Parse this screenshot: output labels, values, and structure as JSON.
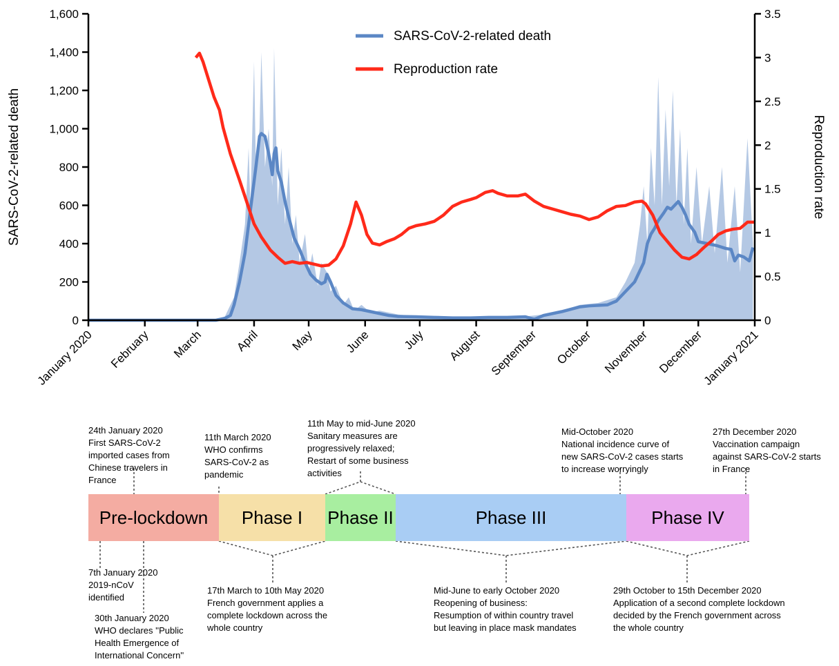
{
  "chart_data": {
    "type": "line",
    "y_label": "SARS-CoV-2-related death",
    "y2_label": "Reproduction rate",
    "xlim": [
      0,
      366
    ],
    "xticks": [
      {
        "value": 0,
        "label": "January 2020"
      },
      {
        "value": 31,
        "label": "February"
      },
      {
        "value": 60,
        "label": "March"
      },
      {
        "value": 91,
        "label": "April"
      },
      {
        "value": 121,
        "label": "May"
      },
      {
        "value": 152,
        "label": "June"
      },
      {
        "value": 182,
        "label": "July"
      },
      {
        "value": 213,
        "label": "August"
      },
      {
        "value": 244,
        "label": "September"
      },
      {
        "value": 274,
        "label": "October"
      },
      {
        "value": 305,
        "label": "November"
      },
      {
        "value": 335,
        "label": "December"
      },
      {
        "value": 366,
        "label": "January 2021"
      }
    ],
    "ylim": [
      0,
      1600
    ],
    "yticks": [
      0,
      200,
      400,
      600,
      800,
      {
        "value": 1000,
        "label": "1,000"
      },
      {
        "value": 1200,
        "label": "1,200"
      },
      {
        "value": 1400,
        "label": "1,400"
      },
      {
        "value": 1600,
        "label": "1,600"
      }
    ],
    "y2lim": [
      0,
      3.5
    ],
    "y2ticks": [
      0,
      0.5,
      1,
      1.5,
      2,
      2.5,
      3,
      3.5
    ],
    "legend": "top-center",
    "grid": false,
    "series": [
      {
        "name": "SARS-CoV-2-related death",
        "color": "#5b87c5",
        "x": [
          0,
          30,
          60,
          70,
          75,
          78,
          80,
          83,
          86,
          88,
          90,
          92,
          94,
          95,
          97,
          99,
          100,
          101,
          102,
          103,
          104,
          106,
          108,
          110,
          113,
          116,
          119,
          122,
          125,
          128,
          130,
          131,
          133,
          136,
          140,
          145,
          150,
          155,
          160,
          165,
          170,
          180,
          190,
          200,
          210,
          220,
          230,
          240,
          245,
          250,
          260,
          270,
          275,
          285,
          290,
          295,
          300,
          303,
          305,
          307,
          309,
          311,
          313,
          316,
          318,
          320,
          322,
          324,
          326,
          328,
          330,
          333,
          335,
          340,
          345,
          350,
          353,
          355,
          357,
          360,
          363,
          365
        ],
        "values": [
          0,
          0,
          0,
          0,
          10,
          25,
          80,
          200,
          350,
          500,
          650,
          800,
          960,
          975,
          960,
          870,
          820,
          760,
          870,
          900,
          780,
          720,
          620,
          540,
          430,
          370,
          300,
          240,
          210,
          190,
          200,
          240,
          200,
          130,
          90,
          60,
          55,
          45,
          35,
          25,
          20,
          18,
          15,
          12,
          12,
          15,
          15,
          18,
          5,
          25,
          45,
          70,
          75,
          80,
          100,
          150,
          200,
          260,
          300,
          400,
          450,
          480,
          520,
          560,
          590,
          580,
          600,
          620,
          590,
          550,
          500,
          460,
          410,
          400,
          390,
          375,
          370,
          310,
          340,
          330,
          310,
          380
        ]
      },
      {
        "name": "Reproduction rate",
        "color": "#ff2a1a",
        "axis": "y2",
        "x": [
          59,
          61,
          63,
          66,
          69,
          72,
          74,
          78,
          83,
          87,
          91,
          95,
          100,
          104,
          108,
          112,
          116,
          120,
          124,
          128,
          132,
          136,
          140,
          144,
          147,
          150,
          153,
          156,
          160,
          164,
          168,
          172,
          176,
          180,
          185,
          190,
          195,
          200,
          205,
          210,
          213,
          218,
          222,
          225,
          230,
          236,
          240,
          245,
          250,
          255,
          260,
          265,
          270,
          275,
          280,
          285,
          290,
          295,
          300,
          304,
          306,
          310,
          314,
          318,
          322,
          326,
          330,
          334,
          338,
          342,
          346,
          350,
          354,
          358,
          362,
          366
        ],
        "values": [
          3.0,
          3.05,
          2.95,
          2.75,
          2.55,
          2.4,
          2.2,
          1.9,
          1.6,
          1.35,
          1.1,
          0.95,
          0.8,
          0.72,
          0.65,
          0.67,
          0.65,
          0.66,
          0.64,
          0.62,
          0.63,
          0.7,
          0.85,
          1.1,
          1.35,
          1.2,
          0.98,
          0.88,
          0.86,
          0.9,
          0.93,
          0.98,
          1.05,
          1.08,
          1.1,
          1.13,
          1.2,
          1.3,
          1.35,
          1.38,
          1.4,
          1.46,
          1.48,
          1.45,
          1.42,
          1.42,
          1.44,
          1.36,
          1.3,
          1.27,
          1.24,
          1.21,
          1.19,
          1.15,
          1.18,
          1.25,
          1.3,
          1.31,
          1.35,
          1.36,
          1.33,
          1.2,
          1.0,
          0.9,
          0.8,
          0.72,
          0.7,
          0.75,
          0.83,
          0.9,
          0.98,
          1.02,
          1.04,
          1.05,
          1.12,
          1.12
        ]
      },
      {
        "type": "area",
        "color": "#b4c8e4",
        "x": [
          0,
          70,
          75,
          80,
          83,
          86,
          88,
          89,
          91,
          92,
          94,
          95,
          97,
          99,
          101,
          102,
          104,
          106,
          108,
          110,
          112,
          114,
          116,
          119,
          121,
          123,
          126,
          128,
          131,
          133,
          136,
          140,
          143,
          146,
          150,
          155,
          160,
          170,
          180,
          200,
          220,
          240,
          250,
          260,
          270,
          280,
          290,
          295,
          300,
          303,
          305,
          307,
          309,
          311,
          313,
          315,
          317,
          319,
          321,
          323,
          325,
          327,
          329,
          331,
          334,
          337,
          341,
          344,
          348,
          351,
          355,
          358,
          362,
          365
        ],
        "values": [
          0,
          0,
          20,
          120,
          300,
          500,
          900,
          600,
          1350,
          800,
          1000,
          1400,
          800,
          1000,
          700,
          1420,
          600,
          900,
          500,
          800,
          400,
          550,
          300,
          450,
          250,
          350,
          180,
          300,
          250,
          150,
          180,
          80,
          120,
          50,
          80,
          40,
          50,
          30,
          20,
          15,
          15,
          20,
          30,
          50,
          80,
          90,
          120,
          200,
          300,
          500,
          700,
          400,
          900,
          600,
          1270,
          600,
          1100,
          700,
          1200,
          600,
          1000,
          500,
          900,
          400,
          800,
          400,
          700,
          350,
          800,
          300,
          700,
          250,
          950,
          400
        ]
      }
    ]
  },
  "timeline": {
    "phases": [
      {
        "label": "Pre-lockdown",
        "color": "#f4aca2"
      },
      {
        "label": "Phase I",
        "color": "#f6e0a8"
      },
      {
        "label": "Phase II",
        "color": "#a8eea0"
      },
      {
        "label": "Phase III",
        "color": "#a9cdf4"
      },
      {
        "label": "Phase IV",
        "color": "#eaa9ee"
      }
    ],
    "annotations": [
      [
        "24th January 2020",
        "First SARS-CoV-2",
        "imported cases from",
        "Chinese travelers in",
        "France"
      ],
      [
        "11th March 2020",
        "WHO confirms",
        "SARS-CoV-2 as",
        "pandemic"
      ],
      [
        "11th May to mid-June 2020",
        "Sanitary measures are",
        "progressively relaxed;",
        "Restart of some business",
        "activities"
      ],
      [
        "Mid-October 2020",
        "National incidence curve of",
        "new SARS-CoV-2 cases starts",
        "to increase worryingly"
      ],
      [
        "27th December 2020",
        "Vaccination campaign",
        "against SARS-CoV-2 starts",
        "in France"
      ],
      [
        "7th January 2020",
        "2019-nCoV",
        "identified"
      ],
      [
        "30th January 2020",
        "WHO declares ''Public",
        "Health Emergence of",
        "International Concern''"
      ],
      [
        "17th March to 10th May 2020",
        "French government applies a",
        "complete lockdown across the",
        "whole country"
      ],
      [
        "Mid-June to early October 2020",
        "Reopening of business:",
        "Resumption of within country travel",
        "but leaving in place mask mandates"
      ],
      [
        "29th October to 15th December 2020",
        "Application of a second complete lockdown",
        "decided by the French government across",
        "the whole country"
      ]
    ]
  }
}
